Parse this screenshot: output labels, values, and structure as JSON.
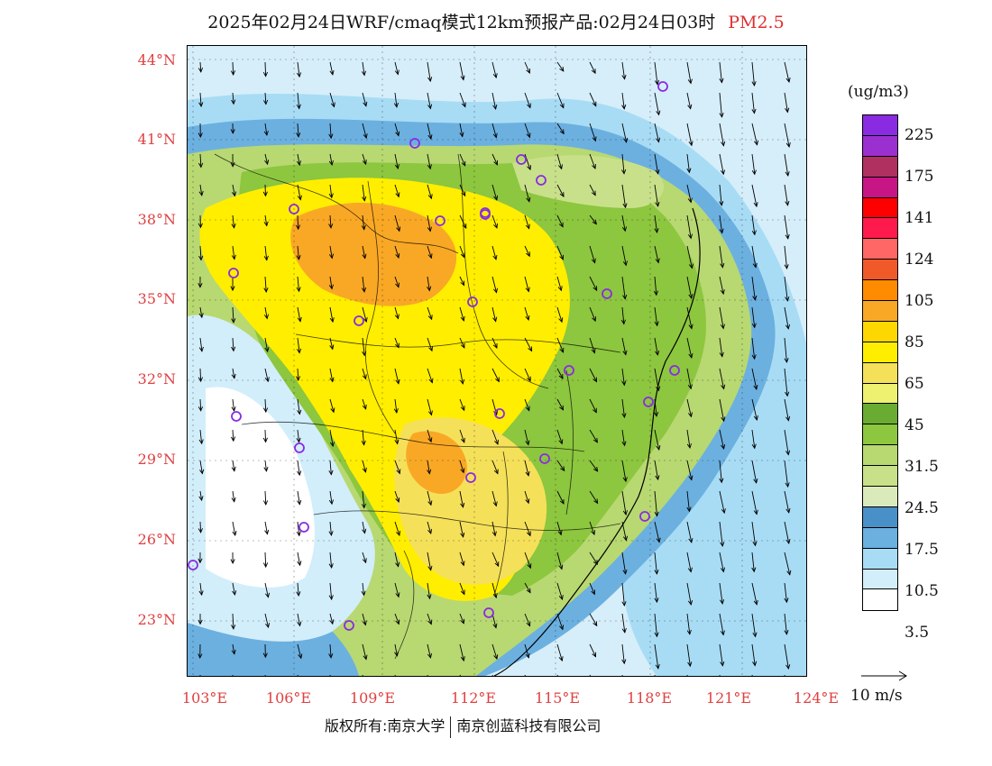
{
  "title": {
    "main": "2025年02月24日WRF/cmaq模式12km预报产品:02月24日03时",
    "species": "PM2.5"
  },
  "map": {
    "lat_labels": [
      "44°N",
      "41°N",
      "38°N",
      "35°N",
      "32°N",
      "29°N",
      "26°N",
      "23°N"
    ],
    "lon_labels": [
      "103°E",
      "106°E",
      "109°E",
      "112°E",
      "115°E",
      "118°E",
      "121°E",
      "124°E"
    ],
    "lat_range": [
      21,
      44.5
    ],
    "lon_range": [
      103,
      124
    ],
    "station_marker_color": "#8a2be2"
  },
  "legend": {
    "unit": "(ug/m3)",
    "labels": [
      "225",
      "175",
      "141",
      "124",
      "105",
      "85",
      "65",
      "45",
      "31.5",
      "24.5",
      "17.5",
      "10.5",
      "3.5"
    ],
    "colors": [
      "#8a2be2",
      "#9b30d0",
      "#b03060",
      "#c71585",
      "#ff0000",
      "#ff1a4d",
      "#ff6666",
      "#f05a28",
      "#ff8c00",
      "#f9a825",
      "#ffd700",
      "#ffee00",
      "#f5e05a",
      "#eef070",
      "#6aab32",
      "#8dc63f",
      "#b8d872",
      "#c9e08a",
      "#dbeabb",
      "#4a90c8",
      "#6cb0e0",
      "#a8dcf5",
      "#d2eefb",
      "#ffffff"
    ],
    "vector_ref": "10 m/s"
  },
  "footer": {
    "copyright": "版权所有:南京大学",
    "company": "南京创蓝科技有限公司"
  }
}
